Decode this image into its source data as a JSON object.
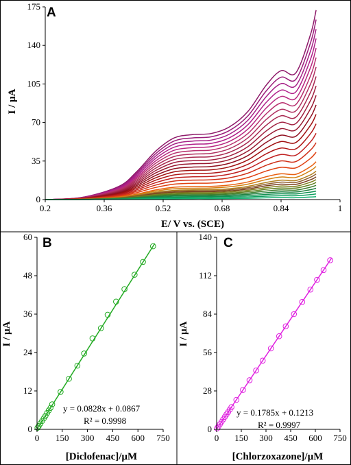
{
  "chart_data": [
    {
      "type": "line",
      "panel_label": "A",
      "xlabel": "E/ V vs. (SCE)",
      "ylabel": "I / µA",
      "xlim": [
        0.2,
        1.0
      ],
      "ylim": [
        0,
        175
      ],
      "xticks": [
        "0.2",
        "0.36",
        "0.52",
        "0.68",
        "0.84",
        "1"
      ],
      "yticks": [
        "0",
        "35",
        "70",
        "105",
        "140",
        "175"
      ],
      "grid": false,
      "legend": "none",
      "x": [
        0.2,
        0.3,
        0.4,
        0.45,
        0.5,
        0.55,
        0.6,
        0.65,
        0.7,
        0.75,
        0.8,
        0.84,
        0.88,
        0.92,
        0.935
      ],
      "series": [
        {
          "color": "#8e1a6a",
          "values": [
            0,
            2,
            12,
            26,
            44,
            56,
            59,
            60,
            66,
            80,
            104,
            117,
            115,
            150,
            172
          ]
        },
        {
          "color": "#9a1c7a",
          "values": [
            0,
            1.9,
            11.4,
            24.7,
            41.8,
            53.2,
            56,
            57,
            62.7,
            76,
            98.8,
            111.1,
            109.2,
            142.5,
            163.4
          ]
        },
        {
          "color": "#a52086",
          "values": [
            0,
            1.8,
            10.8,
            23.4,
            39.6,
            50.4,
            53.1,
            54,
            59.4,
            72,
            93.6,
            105.3,
            103.5,
            135,
            154.8
          ]
        },
        {
          "color": "#b0208a",
          "values": [
            0,
            1.7,
            10.2,
            22.1,
            37.4,
            47.6,
            50.2,
            51,
            56.1,
            68,
            88.4,
            99.4,
            97.8,
            127.5,
            146.2
          ]
        },
        {
          "color": "#b82880",
          "values": [
            0,
            1.6,
            9.6,
            20.8,
            35.2,
            44.8,
            47.2,
            48,
            52.8,
            64,
            83.2,
            93.6,
            92,
            120,
            137.6
          ]
        },
        {
          "color": "#b8306e",
          "values": [
            0,
            1.5,
            9,
            19.5,
            33,
            42,
            44.3,
            45,
            49.5,
            60,
            78,
            87.8,
            86.3,
            112.5,
            129
          ]
        },
        {
          "color": "#b03060",
          "values": [
            0,
            1.4,
            8.4,
            18.2,
            30.8,
            39.2,
            41.3,
            42,
            46.2,
            56,
            72.8,
            81.9,
            80.5,
            105,
            120.4
          ]
        },
        {
          "color": "#a82850",
          "values": [
            0,
            1.3,
            7.8,
            16.9,
            28.6,
            36.4,
            38.4,
            39,
            42.9,
            52,
            67.6,
            76.1,
            74.8,
            97.5,
            111.8
          ]
        },
        {
          "color": "#a02040",
          "values": [
            0,
            1.2,
            7.2,
            15.6,
            26.4,
            33.6,
            35.4,
            36,
            39.6,
            48,
            62.4,
            70.2,
            69,
            90,
            103.2
          ]
        },
        {
          "color": "#981830",
          "values": [
            0,
            1.1,
            6.6,
            14.3,
            24.2,
            30.8,
            32.5,
            33,
            36.3,
            44,
            57.2,
            64.4,
            63.3,
            82.5,
            94.6
          ]
        },
        {
          "color": "#901020",
          "values": [
            0,
            1,
            6,
            13,
            22,
            28,
            29.5,
            30,
            33,
            40,
            52,
            58.5,
            57.5,
            75,
            86
          ]
        },
        {
          "color": "#a01010",
          "values": [
            0,
            0.9,
            5.4,
            11.7,
            19.8,
            25.2,
            26.6,
            27,
            29.7,
            36,
            46.8,
            52.7,
            51.8,
            67.5,
            77.4
          ]
        },
        {
          "color": "#b01818",
          "values": [
            0,
            0.8,
            4.8,
            10.4,
            17.6,
            22.4,
            23.6,
            24,
            26.4,
            32,
            41.6,
            46.8,
            46,
            60,
            68.8
          ]
        },
        {
          "color": "#c02020",
          "values": [
            0,
            0.7,
            4.2,
            9.1,
            15.4,
            19.6,
            20.7,
            21,
            23.1,
            28,
            36.4,
            41,
            40.3,
            52.5,
            60.2
          ]
        },
        {
          "color": "#d03018",
          "values": [
            0,
            0.6,
            3.6,
            7.8,
            13.2,
            16.8,
            17.7,
            18,
            19.8,
            24,
            31.2,
            35.1,
            34.5,
            45,
            51.6
          ]
        },
        {
          "color": "#e04010",
          "values": [
            0,
            0.5,
            3,
            6.5,
            11,
            14,
            14.8,
            15,
            16.5,
            20,
            26,
            29.3,
            28.8,
            37.5,
            43
          ]
        },
        {
          "color": "#e86010",
          "values": [
            0,
            0.4,
            2.4,
            5.2,
            8.8,
            11.2,
            11.8,
            12,
            13.2,
            16,
            20.8,
            23.4,
            23,
            30,
            34.4
          ]
        },
        {
          "color": "#d08010",
          "values": [
            0,
            0.35,
            2.1,
            4.6,
            7.7,
            9.8,
            10.3,
            10.5,
            11.6,
            14,
            18.2,
            20.5,
            20.1,
            26.3,
            30.1
          ]
        },
        {
          "color": "#b08020",
          "values": [
            0,
            0.3,
            1.8,
            3.9,
            6.6,
            8.4,
            8.9,
            9,
            9.9,
            12,
            15.6,
            17.6,
            17.3,
            22.5,
            25.8
          ]
        },
        {
          "color": "#906030",
          "values": [
            0,
            0.27,
            1.6,
            3.5,
            5.9,
            7.6,
            8,
            8.1,
            8.9,
            10.8,
            14,
            15.8,
            15.5,
            20.3,
            23.2
          ]
        },
        {
          "color": "#7a4020",
          "values": [
            0,
            0.24,
            1.4,
            3.1,
            5.3,
            6.7,
            7.1,
            7.2,
            7.9,
            9.6,
            12.5,
            14,
            13.8,
            18,
            20.6
          ]
        },
        {
          "color": "#808020",
          "values": [
            0,
            0.21,
            1.3,
            2.7,
            4.6,
            5.9,
            6.2,
            6.3,
            6.9,
            8.4,
            10.9,
            12.3,
            12.1,
            15.8,
            18.1
          ]
        },
        {
          "color": "#608020",
          "values": [
            0,
            0.18,
            1.1,
            2.3,
            4,
            5,
            5.3,
            5.4,
            5.9,
            7.2,
            9.4,
            10.5,
            10.4,
            13.5,
            15.5
          ]
        },
        {
          "color": "#408030",
          "values": [
            0,
            0.15,
            0.9,
            2,
            3.3,
            4.2,
            4.4,
            4.5,
            5,
            6,
            7.8,
            8.8,
            8.6,
            11.3,
            12.9
          ]
        },
        {
          "color": "#208040",
          "values": [
            0,
            0.12,
            0.7,
            1.6,
            2.6,
            3.4,
            3.5,
            3.6,
            4,
            4.8,
            6.2,
            7,
            6.9,
            9,
            10.3
          ]
        },
        {
          "color": "#109050",
          "values": [
            0,
            0.09,
            0.5,
            1.2,
            2,
            2.5,
            2.7,
            2.7,
            3,
            3.6,
            4.7,
            5.3,
            5.2,
            6.8,
            7.7
          ]
        },
        {
          "color": "#10a060",
          "values": [
            0,
            0.06,
            0.4,
            0.8,
            1.3,
            1.7,
            1.8,
            1.8,
            2,
            2.4,
            3.1,
            3.5,
            3.5,
            4.5,
            5.2
          ]
        },
        {
          "color": "#10b070",
          "values": [
            0,
            0.03,
            0.2,
            0.4,
            0.7,
            0.8,
            0.9,
            0.9,
            1,
            1.2,
            1.6,
            1.8,
            1.7,
            2.3,
            2.6
          ]
        }
      ]
    },
    {
      "type": "scatter",
      "panel_label": "B",
      "xlabel": "[Diclofenac]/µM",
      "ylabel": "I / µA",
      "xlim": [
        0,
        750
      ],
      "ylim": [
        0,
        60
      ],
      "xticks": [
        "0",
        "150",
        "300",
        "450",
        "600",
        "750"
      ],
      "yticks": [
        "0",
        "12",
        "24",
        "36",
        "48",
        "60"
      ],
      "grid": false,
      "color": "#22aa22",
      "x": [
        3,
        10,
        20,
        30,
        40,
        50,
        60,
        70,
        80,
        90,
        140,
        190,
        240,
        280,
        330,
        380,
        420,
        470,
        520,
        580,
        630,
        690
      ],
      "y": [
        0.5,
        1,
        1.8,
        2.6,
        3.4,
        4.2,
        5.1,
        5.9,
        6.7,
        7.8,
        11.7,
        15.8,
        19.9,
        23.7,
        28.4,
        31.6,
        35.8,
        39.9,
        43.8,
        48.3,
        52.3,
        57.2
      ],
      "fit": {
        "slope": 0.0828,
        "intercept": 0.0867,
        "x_range": [
          0,
          700
        ]
      },
      "equation": "y = 0.0828x + 0.0867",
      "r2": "R² = 0.9998"
    },
    {
      "type": "scatter",
      "panel_label": "C",
      "xlabel": "[Chlorzoxazone]/µM",
      "ylabel": "I / µA",
      "xlim": [
        0,
        750
      ],
      "ylim": [
        0,
        140
      ],
      "xticks": [
        "0",
        "150",
        "300",
        "450",
        "600",
        "750"
      ],
      "yticks": [
        "0",
        "28",
        "56",
        "84",
        "112",
        "140"
      ],
      "grid": false,
      "color": "#e020e0",
      "x": [
        3,
        10,
        20,
        30,
        40,
        50,
        60,
        70,
        80,
        90,
        120,
        160,
        200,
        240,
        280,
        330,
        380,
        420,
        470,
        520,
        570,
        610,
        650,
        690
      ],
      "y": [
        0.7,
        2,
        3.8,
        5.5,
        7.3,
        9.1,
        10.9,
        12.6,
        14.4,
        16.2,
        21.5,
        28.7,
        35.8,
        42.9,
        50.1,
        59,
        67.9,
        75.1,
        84,
        92.9,
        101.9,
        109,
        116.1,
        123.3
      ],
      "fit": {
        "slope": 0.1785,
        "intercept": 0.1213,
        "x_range": [
          0,
          700
        ]
      },
      "equation": "y = 0.1785x + 0.1213",
      "r2": "R² = 0.9997"
    }
  ]
}
